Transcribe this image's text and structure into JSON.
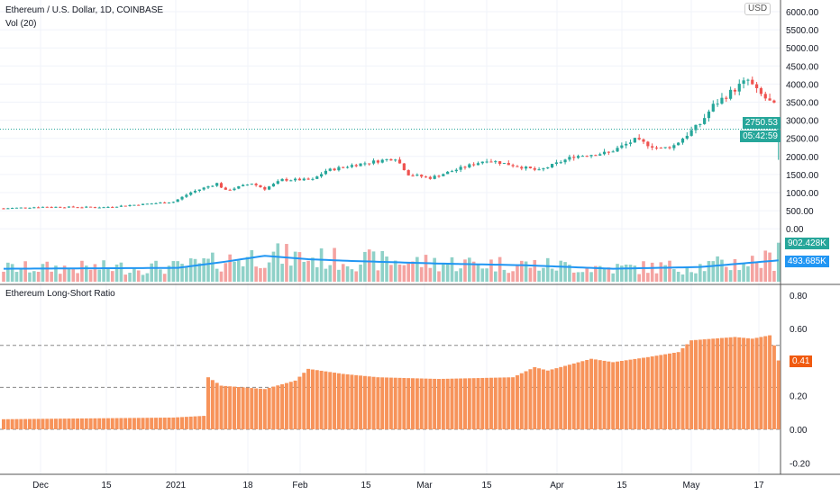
{
  "header": {
    "title": "Ethereum / U.S. Dollar, 1D, COINBASE",
    "volume_label": "Vol (20)",
    "currency_button": "USD"
  },
  "lower_pane": {
    "title": "Ethereum Long-Short Ratio"
  },
  "tags": {
    "last_price": "2750.53",
    "countdown": "05:42:59",
    "volume": "902.428K",
    "volume_ma": "493.685K",
    "ratio": "0.41"
  },
  "colors": {
    "up": "#26a69a",
    "down": "#ef5350",
    "vol_up": "#8fd1c8",
    "vol_down": "#f4a3a1",
    "ma": "#2196f3",
    "ratio": "#f7935a",
    "ratio_tag": "#f05a0f"
  },
  "chart_data": [
    {
      "type": "candlestick",
      "title": "Ethereum / U.S. Dollar, 1D, COINBASE",
      "ylim": [
        0,
        6000
      ],
      "yticks": [
        "6000.00",
        "5500.00",
        "5000.00",
        "4500.00",
        "4000.00",
        "3500.00",
        "3000.00",
        "2500.00",
        "2000.00",
        "1500.00",
        "1000.00",
        "500.00",
        "0.00"
      ],
      "xticks": [
        "Dec",
        "15",
        "2021",
        "18",
        "Feb",
        "15",
        "Mar",
        "15",
        "Apr",
        "15",
        "May",
        "17"
      ],
      "price_keypoints_day_close": [
        [
          0,
          560
        ],
        [
          9,
          600
        ],
        [
          23,
          590
        ],
        [
          39,
          740
        ],
        [
          43,
          1000
        ],
        [
          49,
          1250
        ],
        [
          51,
          1050
        ],
        [
          57,
          1250
        ],
        [
          60,
          1100
        ],
        [
          64,
          1350
        ],
        [
          71,
          1350
        ],
        [
          74,
          1600
        ],
        [
          80,
          1750
        ],
        [
          90,
          1950
        ],
        [
          93,
          1500
        ],
        [
          98,
          1400
        ],
        [
          111,
          1900
        ],
        [
          123,
          1600
        ],
        [
          131,
          2000
        ],
        [
          139,
          2100
        ],
        [
          145,
          2450
        ],
        [
          151,
          2200
        ],
        [
          154,
          2300
        ],
        [
          160,
          2900
        ],
        [
          163,
          3400
        ],
        [
          169,
          3950
        ],
        [
          171,
          4100
        ],
        [
          173,
          3800
        ],
        [
          175,
          3600
        ],
        [
          177,
          3400
        ],
        [
          178,
          2750
        ]
      ],
      "volume_ma_keypoints_k": [
        [
          0,
          300
        ],
        [
          40,
          320
        ],
        [
          50,
          450
        ],
        [
          60,
          600
        ],
        [
          70,
          520
        ],
        [
          80,
          480
        ],
        [
          100,
          420
        ],
        [
          120,
          380
        ],
        [
          140,
          300
        ],
        [
          160,
          340
        ],
        [
          178,
          494
        ]
      ],
      "last_volume_k": 902.428
    },
    {
      "type": "bar",
      "title": "Ethereum Long-Short Ratio",
      "ylim": [
        -0.25,
        0.85
      ],
      "yticks": [
        "0.80",
        "0.60",
        "0.20",
        "0.00",
        "-0.20"
      ],
      "reference_lines": [
        0.5,
        0.25
      ],
      "ratio_keypoints_day_value": [
        [
          0,
          0.06
        ],
        [
          39,
          0.07
        ],
        [
          46,
          0.08
        ],
        [
          47,
          0.31
        ],
        [
          50,
          0.26
        ],
        [
          60,
          0.24
        ],
        [
          67,
          0.29
        ],
        [
          70,
          0.36
        ],
        [
          78,
          0.33
        ],
        [
          86,
          0.31
        ],
        [
          100,
          0.3
        ],
        [
          117,
          0.31
        ],
        [
          122,
          0.37
        ],
        [
          125,
          0.35
        ],
        [
          135,
          0.42
        ],
        [
          140,
          0.4
        ],
        [
          148,
          0.43
        ],
        [
          155,
          0.46
        ],
        [
          158,
          0.53
        ],
        [
          168,
          0.55
        ],
        [
          172,
          0.54
        ],
        [
          176,
          0.56
        ],
        [
          177,
          0.5
        ],
        [
          178,
          0.41
        ]
      ]
    }
  ]
}
